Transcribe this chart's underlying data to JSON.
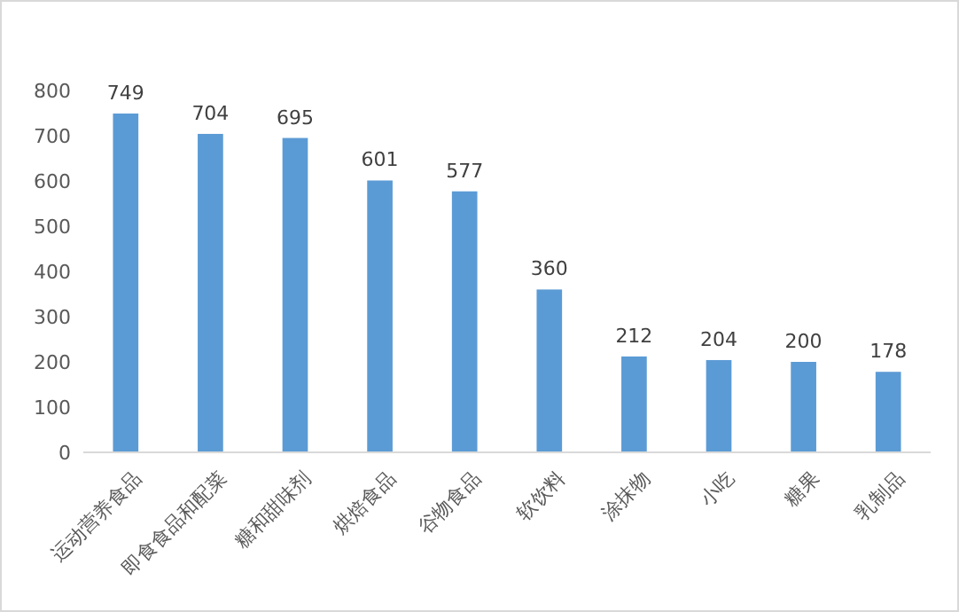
{
  "chart_data": {
    "type": "bar",
    "categories": [
      "运动营养食品",
      "即食食品和配菜",
      "糖和甜味剂",
      "烘焙食品",
      "谷物食品",
      "软饮料",
      "涂抹物",
      "小吃",
      "糖果",
      "乳制品"
    ],
    "values": [
      749,
      704,
      695,
      601,
      577,
      360,
      212,
      204,
      200,
      178
    ],
    "color": "#5b9bd5",
    "ylim": [
      0,
      800
    ],
    "yticks": [
      0,
      100,
      200,
      300,
      400,
      500,
      600,
      700,
      800
    ],
    "grid": false,
    "data_labels": true
  }
}
